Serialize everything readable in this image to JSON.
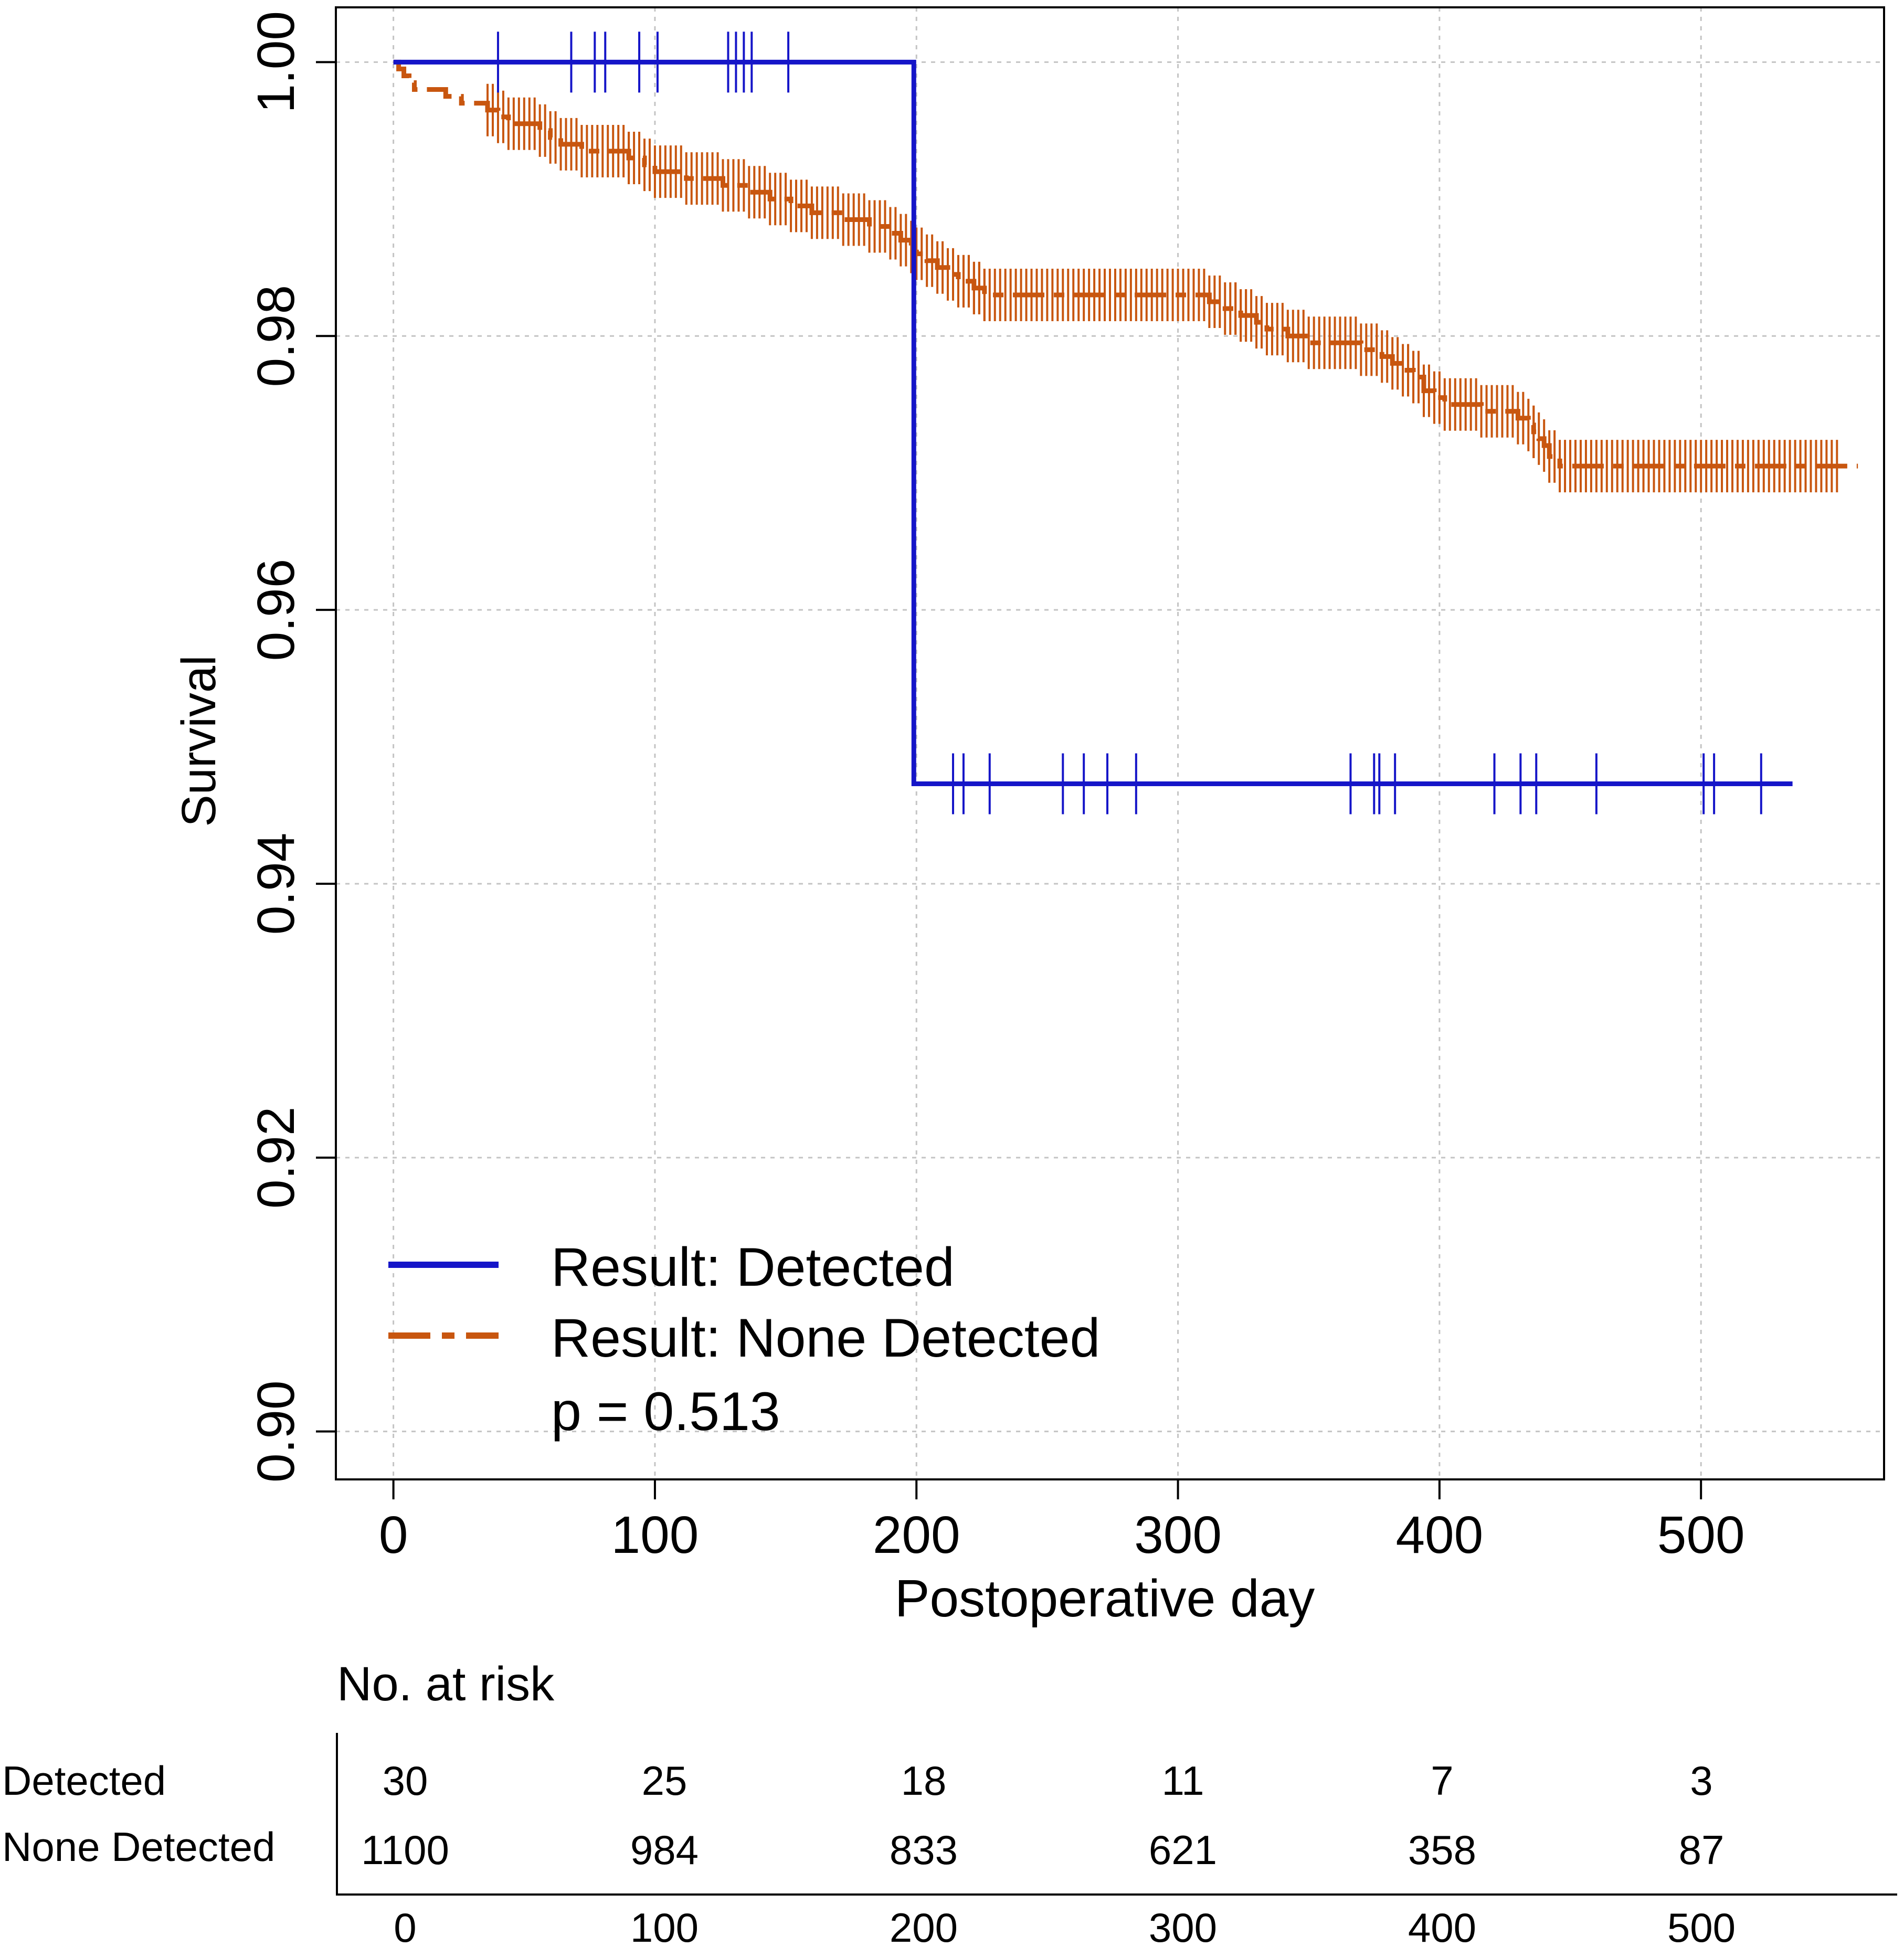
{
  "chart_data": {
    "type": "line",
    "subtype": "kaplan-meier",
    "title": "",
    "xlabel": "Postoperative day",
    "ylabel": "Survival",
    "xlim": [
      -22,
      570
    ],
    "ylim": [
      0.8965,
      1.004
    ],
    "xticks": [
      0,
      100,
      200,
      300,
      400,
      500
    ],
    "xtick_labels": [
      "0",
      "100",
      "200",
      "300",
      "400",
      "500"
    ],
    "yticks": [
      0.9,
      0.92,
      0.94,
      0.96,
      0.98,
      1.0
    ],
    "ytick_labels": [
      "0.90",
      "0.92",
      "0.94",
      "0.96",
      "0.98",
      "1.00"
    ],
    "grid": true,
    "legend": {
      "position": "bottom-left",
      "entries": [
        "Result: Detected",
        "Result: None Detected"
      ],
      "annotation": "p = 0.513"
    },
    "series": [
      {
        "name": "Result: Detected",
        "color": "#1515c8",
        "dash": "solid",
        "steps": [
          [
            0,
            1.0
          ],
          [
            199,
            1.0
          ],
          [
            199,
            0.9473
          ],
          [
            535,
            0.9473
          ]
        ],
        "censor": [
          [
            40,
            1.0
          ],
          [
            68,
            1.0
          ],
          [
            77,
            1.0
          ],
          [
            81,
            1.0
          ],
          [
            94,
            1.0
          ],
          [
            101,
            1.0
          ],
          [
            128,
            1.0
          ],
          [
            131,
            1.0
          ],
          [
            134,
            1.0
          ],
          [
            137,
            1.0
          ],
          [
            151,
            1.0
          ],
          [
            214,
            0.9473
          ],
          [
            218,
            0.9473
          ],
          [
            228,
            0.9473
          ],
          [
            256,
            0.9473
          ],
          [
            264,
            0.9473
          ],
          [
            273,
            0.9473
          ],
          [
            284,
            0.9473
          ],
          [
            366,
            0.9473
          ],
          [
            375,
            0.9473
          ],
          [
            377,
            0.9473
          ],
          [
            383,
            0.9473
          ],
          [
            421,
            0.9473
          ],
          [
            431,
            0.9473
          ],
          [
            437,
            0.9473
          ],
          [
            460,
            0.9473
          ],
          [
            501,
            0.9473
          ],
          [
            505,
            0.9473
          ],
          [
            523,
            0.9473
          ]
        ]
      },
      {
        "name": "Result: None Detected",
        "color": "#c8560f",
        "dash": "dashed",
        "steps": [
          [
            0,
            1.0
          ],
          [
            2,
            0.9995
          ],
          [
            4,
            0.999
          ],
          [
            6,
            0.9985
          ],
          [
            8,
            0.998
          ],
          [
            20,
            0.9975
          ],
          [
            26,
            0.997
          ],
          [
            36,
            0.9965
          ],
          [
            40,
            0.996
          ],
          [
            44,
            0.9955
          ],
          [
            56,
            0.995
          ],
          [
            60,
            0.9945
          ],
          [
            64,
            0.994
          ],
          [
            72,
            0.9935
          ],
          [
            90,
            0.993
          ],
          [
            96,
            0.9925
          ],
          [
            100,
            0.992
          ],
          [
            112,
            0.9915
          ],
          [
            126,
            0.991
          ],
          [
            136,
            0.9905
          ],
          [
            144,
            0.99
          ],
          [
            152,
            0.9895
          ],
          [
            160,
            0.989
          ],
          [
            172,
            0.9885
          ],
          [
            182,
            0.988
          ],
          [
            190,
            0.9875
          ],
          [
            194,
            0.987
          ],
          [
            198,
            0.9865
          ],
          [
            200,
            0.986
          ],
          [
            204,
            0.9855
          ],
          [
            208,
            0.985
          ],
          [
            212,
            0.9845
          ],
          [
            216,
            0.984
          ],
          [
            222,
            0.9835
          ],
          [
            226,
            0.983
          ],
          [
            312,
            0.9825
          ],
          [
            318,
            0.982
          ],
          [
            324,
            0.9815
          ],
          [
            330,
            0.981
          ],
          [
            334,
            0.9805
          ],
          [
            342,
            0.98
          ],
          [
            350,
            0.9795
          ],
          [
            370,
            0.979
          ],
          [
            378,
            0.9785
          ],
          [
            382,
            0.978
          ],
          [
            386,
            0.9775
          ],
          [
            390,
            0.977
          ],
          [
            394,
            0.976
          ],
          [
            398,
            0.9755
          ],
          [
            402,
            0.975
          ],
          [
            416,
            0.9745
          ],
          [
            430,
            0.974
          ],
          [
            434,
            0.9735
          ],
          [
            436,
            0.973
          ],
          [
            438,
            0.9725
          ],
          [
            440,
            0.972
          ],
          [
            442,
            0.9712
          ],
          [
            446,
            0.9705
          ],
          [
            560,
            0.9705
          ]
        ],
        "censor_bands": [
          {
            "start": 36,
            "end": 90,
            "step": 2
          },
          {
            "start": 90,
            "end": 194,
            "step": 2
          },
          {
            "start": 196,
            "end": 226,
            "step": 2
          },
          {
            "start": 218,
            "end": 326,
            "step": 2
          },
          {
            "start": 322,
            "end": 392,
            "step": 2
          },
          {
            "start": 388,
            "end": 436,
            "step": 2
          },
          {
            "start": 436,
            "end": 552,
            "step": 2
          }
        ]
      }
    ],
    "risk_table": {
      "title": "No. at risk",
      "times": [
        "0",
        "100",
        "200",
        "300",
        "400",
        "500"
      ],
      "rows": [
        {
          "label": "Detected",
          "values": [
            "30",
            "25",
            "18",
            "11",
            "7",
            "3"
          ]
        },
        {
          "label": "None Detected",
          "values": [
            "1100",
            "984",
            "833",
            "621",
            "358",
            "87"
          ]
        }
      ]
    }
  }
}
